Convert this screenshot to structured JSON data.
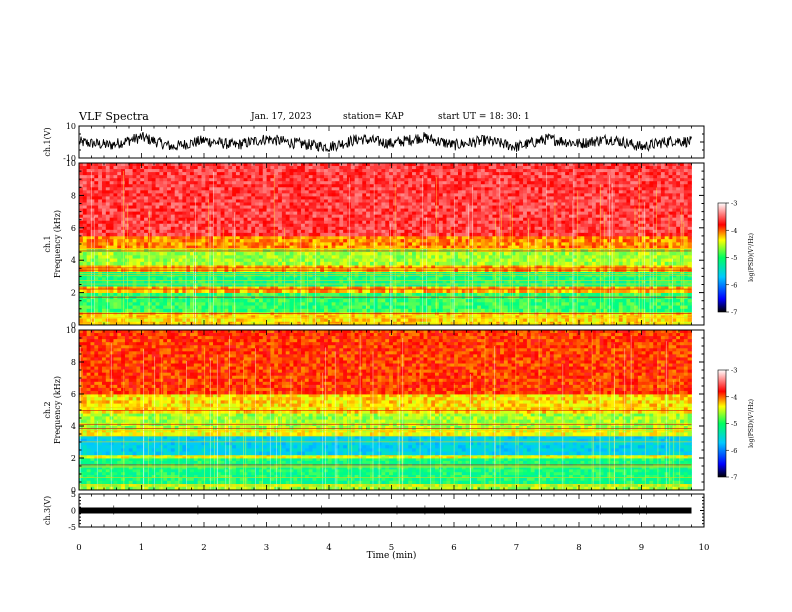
{
  "header": {
    "title": "VLF Spectra",
    "date": "Jan. 17, 2023",
    "station": "station= KAP",
    "start": "start  UT =   18: 30: 1"
  },
  "colorbar": {
    "label": "log(PSD)(V²/Hz)",
    "ticks": [
      "-3",
      "-4",
      "-5",
      "-6",
      "-7"
    ],
    "range": [
      -7,
      -3
    ],
    "colors": [
      "#000000",
      "#0000ff",
      "#00c8ff",
      "#00ff80",
      "#ffff00",
      "#ff0000",
      "#ffffff"
    ]
  },
  "chart_data": [
    {
      "type": "line",
      "title": "",
      "ylabel": "ch.1(V)",
      "ylim": [
        -10,
        10
      ],
      "ytick_labels": [
        "10",
        "-10"
      ],
      "x": [
        0,
        0.5,
        1,
        1.5,
        2,
        2.5,
        3,
        3.5,
        4,
        4.5,
        5,
        5.5,
        6,
        6.5,
        7,
        7.5,
        8,
        8.5,
        9,
        9.5,
        9.8
      ],
      "series": [
        {
          "values": [
            0,
            -2,
            3,
            -3,
            1,
            -2,
            2,
            -1,
            -3,
            2,
            -1,
            3,
            -2,
            1,
            -3,
            2,
            -1,
            2,
            -3,
            1,
            0
          ]
        }
      ],
      "notes": "noisy waveform roughly within ±7 V"
    },
    {
      "type": "heatmap",
      "ylabel": "ch.1\nFrequency (kHz)",
      "ylim": [
        0,
        10
      ],
      "yticks": [
        "0",
        "2",
        "4",
        "6",
        "8",
        "10"
      ],
      "xlim": [
        0,
        9.8
      ],
      "bands": [
        {
          "from": 0,
          "to": 0.8,
          "level": -4.3
        },
        {
          "from": 0.8,
          "to": 2.0,
          "level": -4.9
        },
        {
          "from": 2.0,
          "to": 2.4,
          "level": -4.2
        },
        {
          "from": 2.4,
          "to": 3.3,
          "level": -5.0
        },
        {
          "from": 3.3,
          "to": 3.7,
          "level": -4.2
        },
        {
          "from": 3.7,
          "to": 4.7,
          "level": -4.6
        },
        {
          "from": 4.7,
          "to": 5.5,
          "level": -4.1
        },
        {
          "from": 5.5,
          "to": 10,
          "level": -3.6
        }
      ]
    },
    {
      "type": "heatmap",
      "ylabel": "ch.2\nFrequency (kHz)",
      "ylim": [
        0,
        10
      ],
      "yticks": [
        "0",
        "2",
        "4",
        "6",
        "8",
        "10"
      ],
      "xlim": [
        0,
        9.8
      ],
      "bands": [
        {
          "from": 0,
          "to": 0.4,
          "level": -4.6
        },
        {
          "from": 0.4,
          "to": 2.0,
          "level": -5.0
        },
        {
          "from": 2.0,
          "to": 2.2,
          "level": -4.4
        },
        {
          "from": 2.2,
          "to": 3.4,
          "level": -5.6
        },
        {
          "from": 3.4,
          "to": 3.8,
          "level": -4.4
        },
        {
          "from": 3.8,
          "to": 4.8,
          "level": -4.6
        },
        {
          "from": 4.8,
          "to": 6.0,
          "level": -4.3
        },
        {
          "from": 6.0,
          "to": 10,
          "level": -3.9
        }
      ]
    },
    {
      "type": "line",
      "ylabel": "ch.3(V)",
      "ylim": [
        -5,
        5
      ],
      "ytick_labels": [
        "5",
        "0",
        "-5"
      ],
      "x": [
        0,
        9.8
      ],
      "series": [
        {
          "values": [
            0,
            0
          ]
        }
      ],
      "notes": "thick dense trace near 0 V"
    }
  ],
  "xaxis": {
    "label": "Time (min)",
    "ticks": [
      "0",
      "1",
      "2",
      "3",
      "4",
      "5",
      "6",
      "7",
      "8",
      "9",
      "10"
    ],
    "xlim": [
      0,
      10
    ]
  }
}
